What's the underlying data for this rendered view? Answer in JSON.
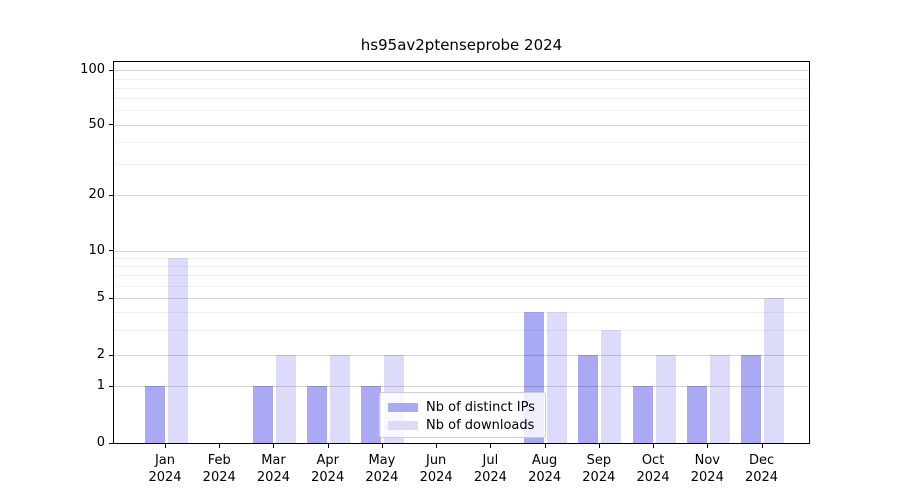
{
  "chart_data": {
    "type": "bar",
    "title": "hs95av2ptenseprobe 2024",
    "categories": [
      "Jan",
      "Feb",
      "Mar",
      "Apr",
      "May",
      "Jun",
      "Jul",
      "Aug",
      "Sep",
      "Oct",
      "Nov",
      "Dec"
    ],
    "category_year": "2024",
    "series": [
      {
        "name": "Nb of distinct IPs",
        "color": "#a9a9f4",
        "values": [
          1,
          0,
          1,
          1,
          1,
          0,
          0,
          4,
          2,
          1,
          1,
          2
        ]
      },
      {
        "name": "Nb of downloads",
        "color": "#dcdcfa",
        "values": [
          9,
          0,
          2,
          2,
          2,
          0,
          0,
          4,
          3,
          2,
          2,
          5
        ]
      }
    ],
    "xlabel": "",
    "ylabel": "",
    "y_axis_scale": "symlog",
    "y_ticks": [
      0,
      1,
      2,
      5,
      10,
      20,
      50,
      100
    ],
    "y_tick_labels": [
      "0",
      "1",
      "2",
      "5",
      "10",
      "20",
      "50",
      "100"
    ],
    "y_minor_ticks": [
      3,
      4,
      6,
      7,
      8,
      9,
      30,
      40,
      60,
      70,
      80,
      90
    ],
    "ylim": [
      0,
      110
    ],
    "grid": "horizontal",
    "legend_position": "lower-center",
    "legend_entries": [
      "Nb of distinct IPs",
      "Nb of downloads"
    ],
    "colors": {
      "distinct_ips": "#a9a9f4",
      "downloads": "#dcdcfa",
      "axis": "#000000",
      "background": "#ffffff"
    }
  }
}
